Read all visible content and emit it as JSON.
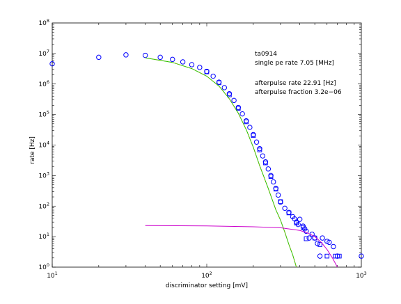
{
  "chart_data": {
    "type": "scatter",
    "xlabel": "discriminator setting [mV]",
    "ylabel": "rate [Hz]",
    "xscale": "log",
    "yscale": "log",
    "xlim": [
      10,
      1000
    ],
    "ylim": [
      1,
      100000000
    ],
    "grid": false,
    "x_ticks": [
      {
        "value": 10,
        "base": "10",
        "exp": "1"
      },
      {
        "value": 100,
        "base": "10",
        "exp": "2"
      },
      {
        "value": 1000,
        "base": "10",
        "exp": "3"
      }
    ],
    "y_ticks": [
      {
        "value": 1,
        "base": "10",
        "exp": "0"
      },
      {
        "value": 10,
        "base": "10",
        "exp": "1"
      },
      {
        "value": 100,
        "base": "10",
        "exp": "2"
      },
      {
        "value": 1000,
        "base": "10",
        "exp": "3"
      },
      {
        "value": 10000,
        "base": "10",
        "exp": "4"
      },
      {
        "value": 100000,
        "base": "10",
        "exp": "5"
      },
      {
        "value": 1000000,
        "base": "10",
        "exp": "6"
      },
      {
        "value": 10000000,
        "base": "10",
        "exp": "7"
      },
      {
        "value": 100000000,
        "base": "10",
        "exp": "8"
      }
    ],
    "annotations": {
      "line1": "ta0914",
      "line2": "single pe rate 7.05 [MHz]",
      "line3": "afterpulse rate 22.91 [Hz]",
      "line4": "afterpulse fraction 3.2e−06"
    },
    "series": [
      {
        "marker": "circle",
        "color": "#0000ff",
        "points": [
          [
            10,
            4600000
          ],
          [
            20,
            7500000
          ],
          [
            30,
            9000000
          ],
          [
            40,
            8700000
          ],
          [
            50,
            7500000
          ],
          [
            60,
            6400000
          ],
          [
            70,
            5300000
          ],
          [
            80,
            4300000
          ],
          [
            90,
            3500000
          ],
          [
            100,
            2600000
          ],
          [
            110,
            1800000
          ],
          [
            120,
            1150000
          ],
          [
            130,
            760000
          ],
          [
            140,
            480000
          ],
          [
            150,
            290000
          ],
          [
            160,
            170000
          ],
          [
            170,
            105000
          ],
          [
            180,
            62000
          ],
          [
            190,
            38000
          ],
          [
            200,
            22000
          ],
          [
            210,
            12500
          ],
          [
            220,
            7600
          ],
          [
            230,
            4400
          ],
          [
            240,
            2800
          ],
          [
            250,
            1650
          ],
          [
            260,
            1000
          ],
          [
            270,
            620
          ],
          [
            280,
            380
          ],
          [
            290,
            230
          ],
          [
            300,
            135
          ],
          [
            320,
            85
          ],
          [
            340,
            62
          ],
          [
            360,
            45
          ],
          [
            370,
            38
          ],
          [
            380,
            30
          ],
          [
            390,
            25
          ],
          [
            400,
            37
          ],
          [
            420,
            22
          ],
          [
            430,
            18
          ],
          [
            440,
            15
          ],
          [
            460,
            9
          ],
          [
            480,
            12
          ],
          [
            500,
            9
          ],
          [
            520,
            6
          ],
          [
            540,
            2.3
          ],
          [
            560,
            9
          ],
          [
            600,
            7
          ],
          [
            620,
            6.5
          ],
          [
            660,
            4.7
          ],
          [
            700,
            2.3
          ],
          [
            1000,
            2.3
          ]
        ]
      },
      {
        "marker": "square",
        "color": "#0000ff",
        "points": [
          [
            100,
            2500000
          ],
          [
            120,
            1100000
          ],
          [
            140,
            440000
          ],
          [
            160,
            160000
          ],
          [
            180,
            58000
          ],
          [
            200,
            20500
          ],
          [
            220,
            6900
          ],
          [
            240,
            2600
          ],
          [
            260,
            930
          ],
          [
            280,
            360
          ],
          [
            300,
            140
          ],
          [
            340,
            60
          ],
          [
            380,
            28
          ],
          [
            420,
            20
          ],
          [
            440,
            8.5
          ],
          [
            500,
            9
          ],
          [
            540,
            5.5
          ],
          [
            600,
            2.3
          ],
          [
            680,
            2.3
          ],
          [
            720,
            2.3
          ]
        ]
      },
      {
        "marker": "line",
        "color": "#00cc00",
        "style": "solid",
        "points": [
          [
            40,
            7200000
          ],
          [
            60,
            5100000
          ],
          [
            80,
            3200000
          ],
          [
            100,
            1800000
          ],
          [
            120,
            850000
          ],
          [
            140,
            330000
          ],
          [
            160,
            110000
          ],
          [
            180,
            32000
          ],
          [
            200,
            8500
          ],
          [
            220,
            2100
          ],
          [
            250,
            380
          ],
          [
            280,
            75
          ],
          [
            300,
            35
          ],
          [
            320,
            14
          ],
          [
            340,
            5.5
          ],
          [
            360,
            2.5
          ],
          [
            380,
            1
          ]
        ]
      },
      {
        "marker": "line",
        "color": "#cc9900",
        "style": "dotted",
        "points": [
          [
            40,
            7200000
          ],
          [
            60,
            5100000
          ],
          [
            80,
            3200000
          ],
          [
            100,
            1800000
          ],
          [
            120,
            850000
          ],
          [
            140,
            330000
          ],
          [
            160,
            110000
          ],
          [
            180,
            32000
          ],
          [
            200,
            8500
          ],
          [
            220,
            2100
          ],
          [
            250,
            380
          ],
          [
            280,
            75
          ],
          [
            300,
            35
          ],
          [
            320,
            14
          ],
          [
            340,
            5.5
          ],
          [
            360,
            2.5
          ],
          [
            380,
            1
          ]
        ]
      },
      {
        "marker": "line",
        "color": "#cc00cc",
        "style": "solid",
        "points": [
          [
            40,
            23
          ],
          [
            100,
            22.5
          ],
          [
            200,
            21
          ],
          [
            300,
            19.5
          ],
          [
            400,
            16
          ],
          [
            450,
            13
          ],
          [
            500,
            10
          ],
          [
            550,
            6.5
          ],
          [
            600,
            3.8
          ],
          [
            650,
            2
          ],
          [
            700,
            1
          ]
        ]
      }
    ]
  }
}
